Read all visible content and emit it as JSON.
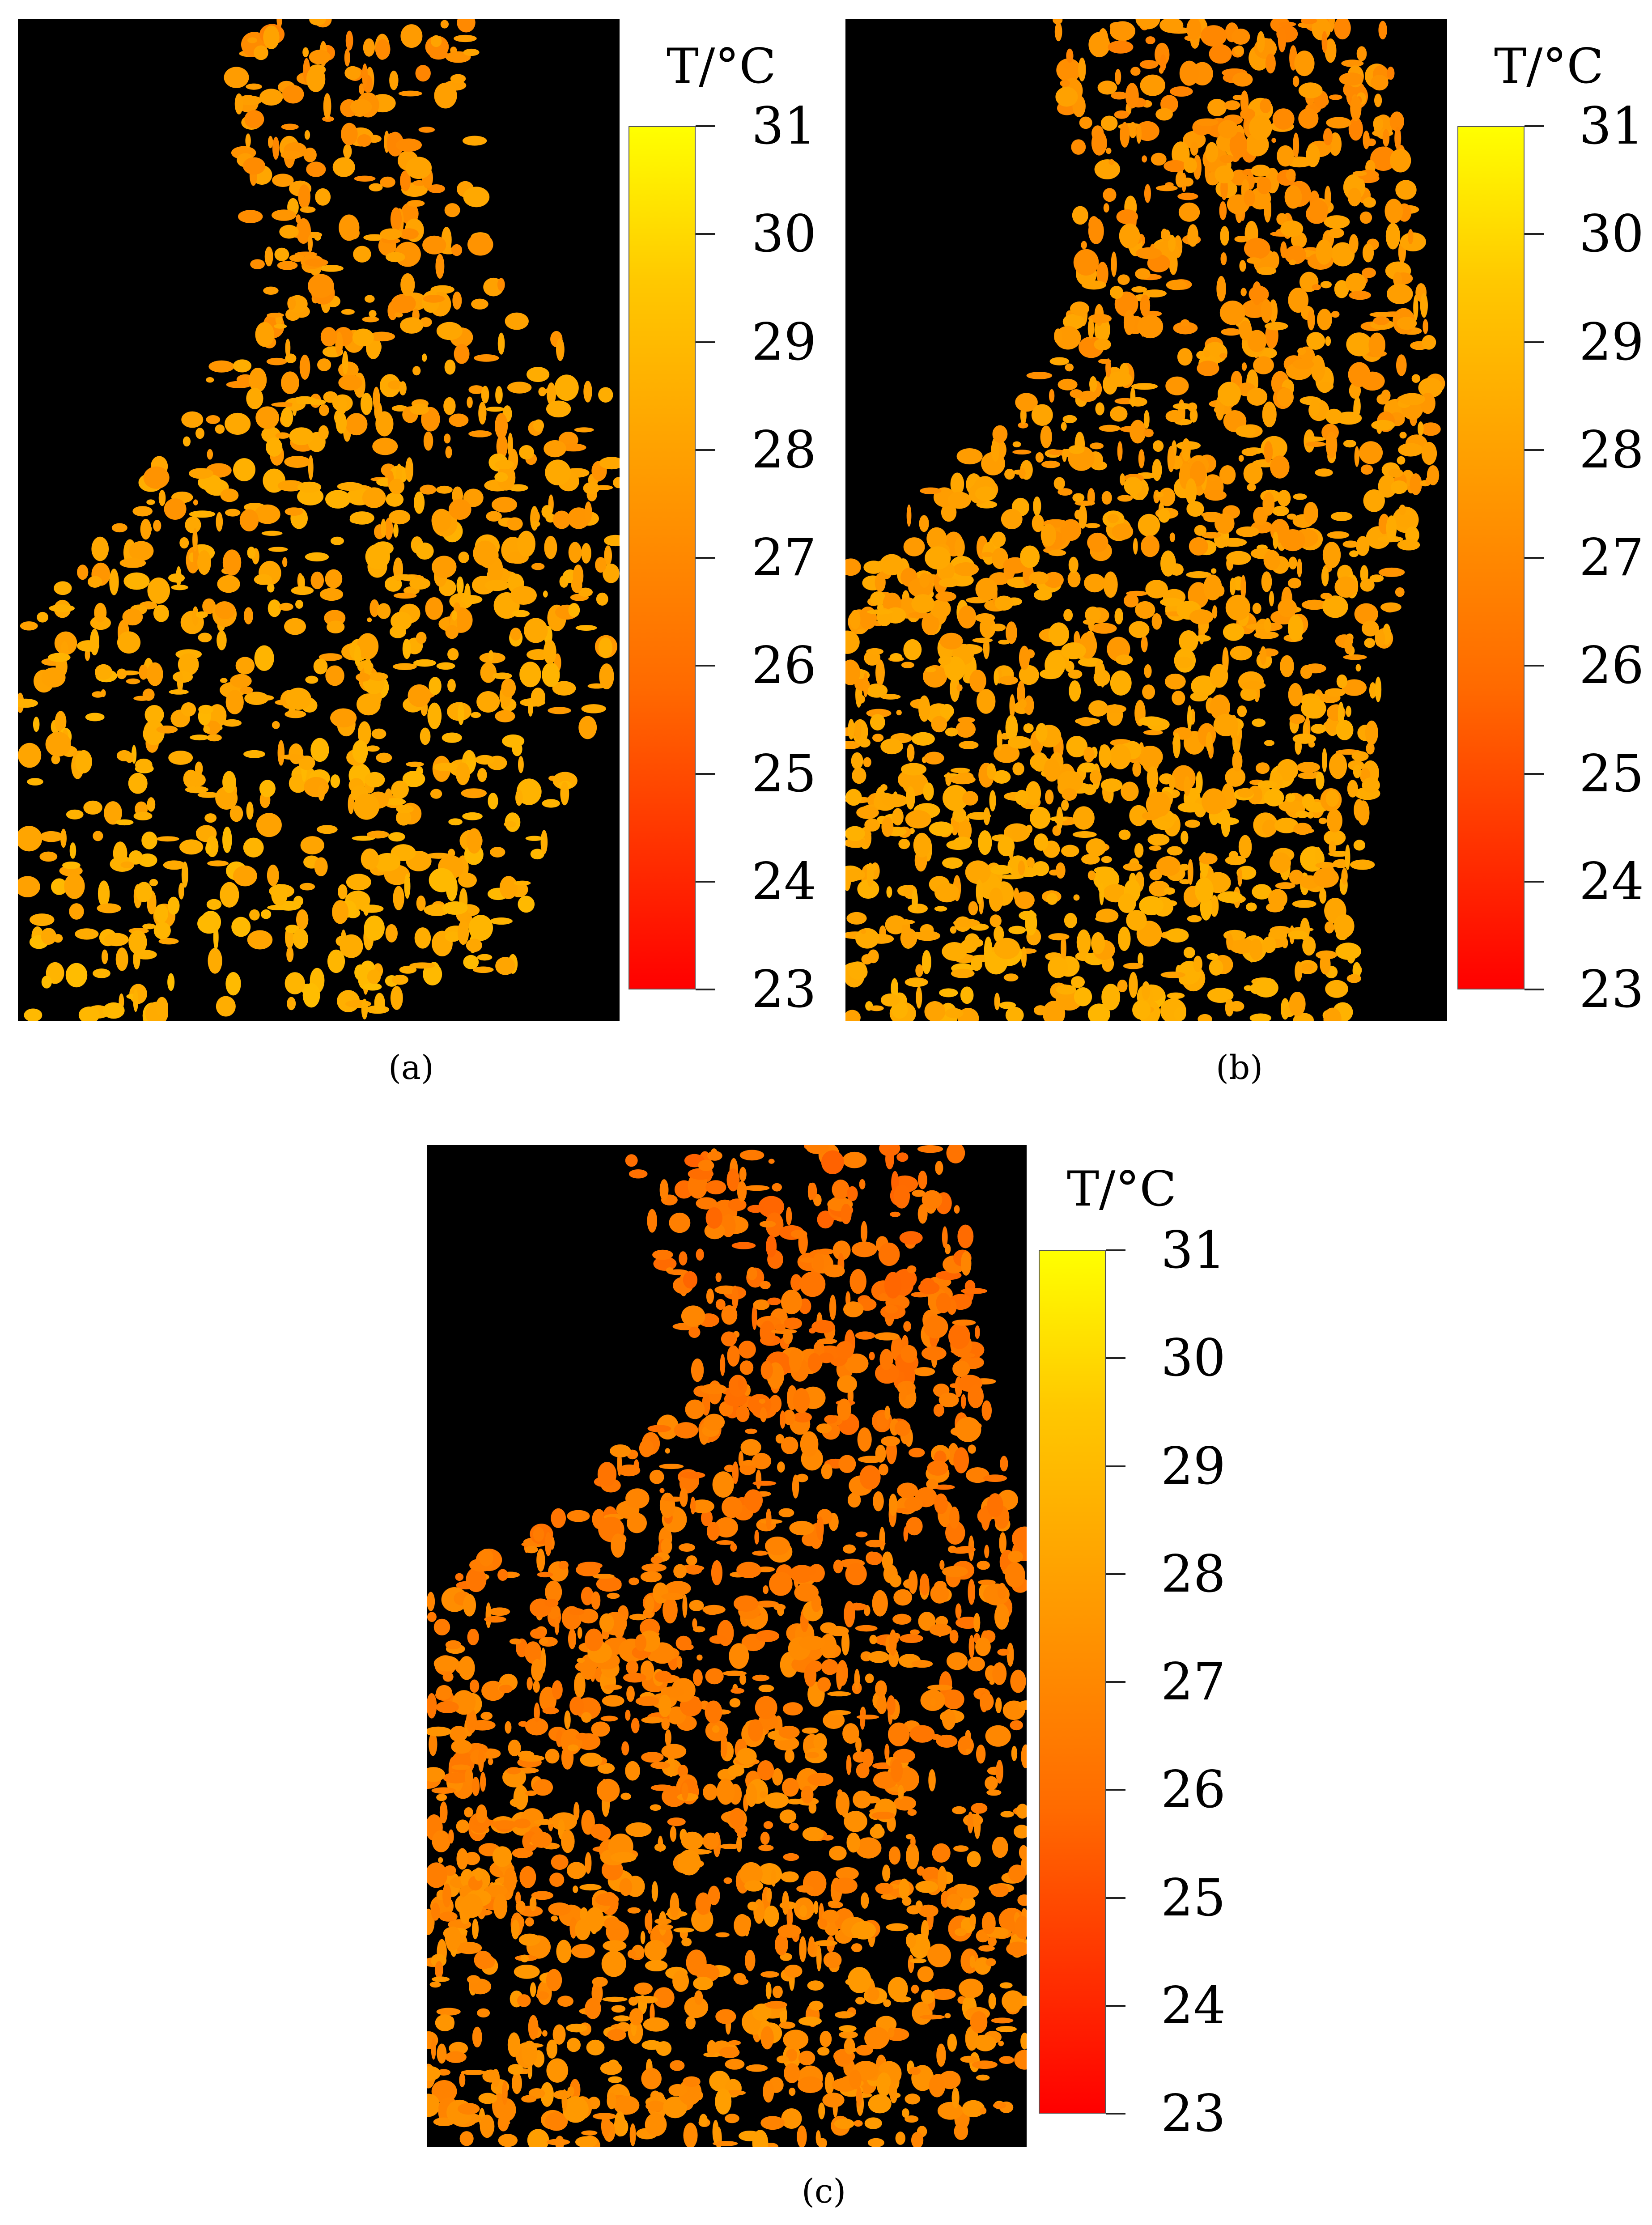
{
  "legend": {
    "title": "T/°C",
    "ticks": [
      "31",
      "30",
      "29",
      "28",
      "27",
      "26",
      "25",
      "24",
      "23"
    ],
    "min": 23,
    "max": 31,
    "colors": {
      "low": "#ff0000",
      "mid": "#ff8c00",
      "high": "#ffff00"
    }
  },
  "panels": [
    {
      "id": "a",
      "caption": "(a)"
    },
    {
      "id": "b",
      "caption": "(b)"
    },
    {
      "id": "c",
      "caption": "(c)"
    }
  ]
}
